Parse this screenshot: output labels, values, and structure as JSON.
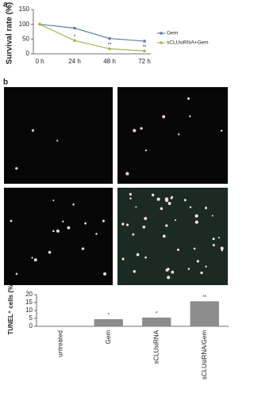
{
  "chart_data": [
    {
      "type": "line",
      "panel": "a",
      "ylabel": "Survival rate (%)",
      "categories": [
        "0 h",
        "24 h",
        "48 h",
        "72 h"
      ],
      "series": [
        {
          "name": "Gem",
          "color": "#5b7fa6",
          "values": [
            100,
            87,
            52,
            43
          ]
        },
        {
          "name": "sCLUsiRNA+Gem",
          "color": "#a9b35a",
          "values": [
            100,
            45,
            17,
            10
          ],
          "annotations": [
            null,
            "*",
            "**",
            "**"
          ]
        }
      ],
      "ylim": [
        0,
        150
      ],
      "yticks": [
        0,
        50,
        100,
        150
      ]
    },
    {
      "type": "bar",
      "panel": "b",
      "ylabel": "TUNEL⁺ cells (%)",
      "categories": [
        "untreated",
        "Gem",
        "sCLUsiRNA",
        "sCLUsiRNA/Gem"
      ],
      "values": [
        0.3,
        4.5,
        5.5,
        15.8
      ],
      "annotations": [
        null,
        "*",
        "*",
        "**"
      ],
      "color": "#8c8c8c",
      "ylim": [
        0,
        20
      ],
      "yticks": [
        0,
        5,
        10,
        15,
        20
      ]
    }
  ]
}
